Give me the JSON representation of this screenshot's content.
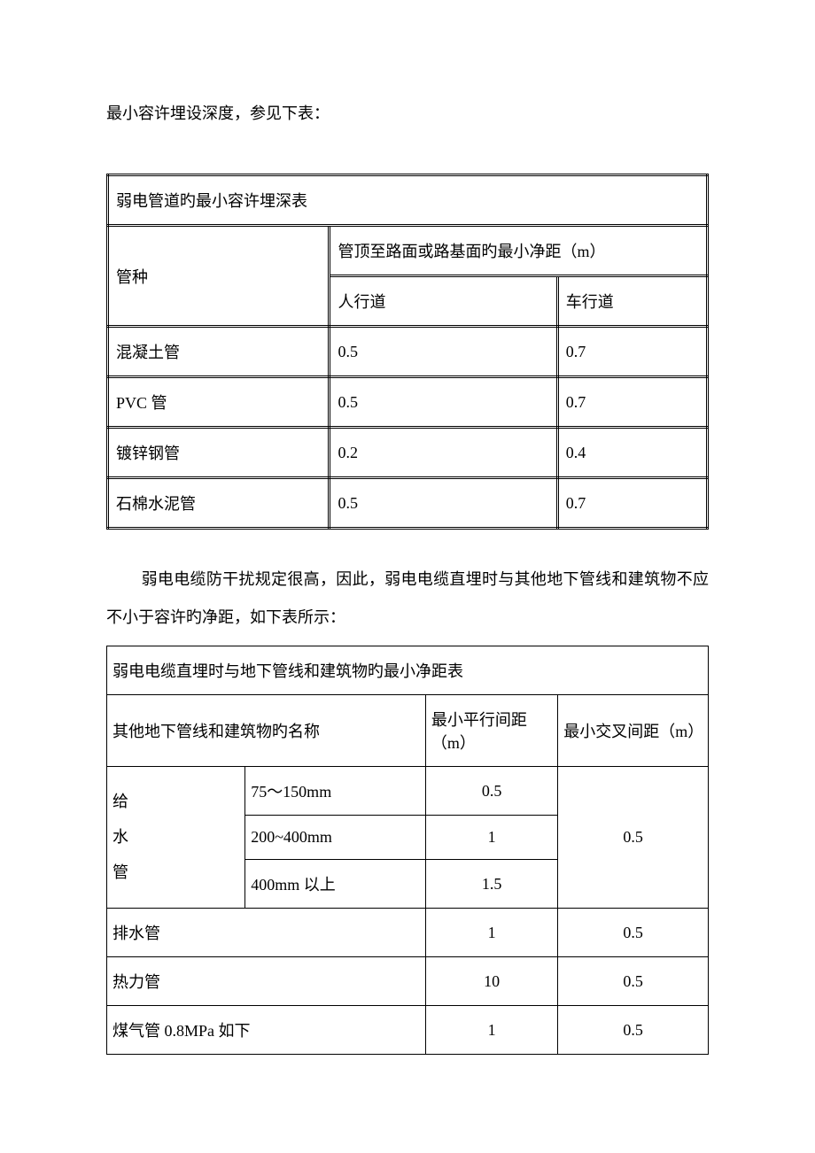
{
  "intro": "最小容许埋设深度，参见下表：",
  "table1": {
    "title": "弱电管道旳最小容许埋深表",
    "col_type": "管种",
    "col_header_group": "管顶至路面或路基面旳最小净距（m）",
    "col_ped": "人行道",
    "col_veh": "车行道",
    "rows": [
      {
        "type": "混凝土管",
        "ped": "0.5",
        "veh": "0.7"
      },
      {
        "type": "PVC 管",
        "ped": "0.5",
        "veh": "0.7"
      },
      {
        "type": "镀锌钢管",
        "ped": "0.2",
        "veh": "0.4"
      },
      {
        "type": "石棉水泥管",
        "ped": "0.5",
        "veh": "0.7"
      }
    ]
  },
  "paragraph": "弱电电缆防干扰规定很高，因此，弱电电缆直埋时与其他地下管线和建筑物不应不小于容许旳净距，如下表所示：",
  "table2": {
    "title": "弱电电缆直埋时与地下管线和建筑物旳最小净距表",
    "col_name": "其他地下管线和建筑物旳名称",
    "col_parallel": "最小平行间距（m）",
    "col_cross": "最小交叉间距（m）",
    "water_label_1": "给",
    "water_label_2": "水",
    "water_label_3": "管",
    "water_rows": [
      {
        "spec": "75～150mm",
        "parallel": "0.5"
      },
      {
        "spec": "200~400mm",
        "parallel": "1"
      },
      {
        "spec": "400mm 以上",
        "parallel": "1.5"
      }
    ],
    "water_cross": "0.5",
    "other_rows": [
      {
        "name": "排水管",
        "parallel": "1",
        "cross": "0.5"
      },
      {
        "name": "热力管",
        "parallel": "10",
        "cross": "0.5"
      },
      {
        "name": "煤气管 0.8MPa 如下",
        "parallel": "1",
        "cross": "0.5"
      }
    ]
  }
}
